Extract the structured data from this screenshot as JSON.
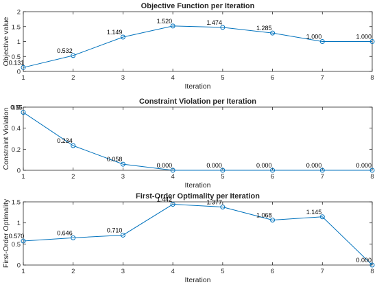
{
  "chart_data": [
    {
      "type": "line",
      "title": "Objective Function per Iteration",
      "xlabel": "Iteration",
      "ylabel": "Objective value",
      "x": [
        1,
        2,
        3,
        4,
        5,
        6,
        7,
        8
      ],
      "xlim": [
        1,
        8
      ],
      "ylim": [
        0,
        2
      ],
      "x_ticks": [
        1,
        2,
        3,
        4,
        5,
        6,
        7,
        8
      ],
      "y_ticks": [
        0,
        0.5,
        1,
        1.5,
        2
      ],
      "y_tick_labels": [
        "0",
        "0.5",
        "1",
        "1.5",
        "2"
      ],
      "series": [
        {
          "values": [
            0.131,
            0.532,
            1.149,
            1.52,
            1.474,
            1.285,
            1.0,
            1.0
          ],
          "labels": [
            "0.131",
            "0.532",
            "1.149",
            "1.520",
            "1.474",
            "1.285",
            "1.000",
            "1.000"
          ],
          "color": "#0072BD",
          "marker": "circle"
        }
      ],
      "grid": false
    },
    {
      "type": "line",
      "title": "Constraint Violation per Iteration",
      "xlabel": "Iteration",
      "ylabel": "Constraint Violation",
      "x": [
        1,
        2,
        3,
        4,
        5,
        6,
        7,
        8
      ],
      "xlim": [
        1,
        8
      ],
      "ylim": [
        0,
        0.6
      ],
      "x_ticks": [
        1,
        2,
        3,
        4,
        5,
        6,
        7,
        8
      ],
      "y_ticks": [
        0,
        0.2,
        0.4,
        0.6
      ],
      "y_tick_labels": [
        "0",
        "0.2",
        "0.4",
        "0.6"
      ],
      "series": [
        {
          "values": [
            0.55,
            0.234,
            0.058,
            0.0,
            0.0,
            0.0,
            0.0,
            0.0
          ],
          "labels": [
            "0.55",
            "0.234",
            "0.058",
            "0.000",
            "0.000",
            "0.000",
            "0.000",
            "0.000"
          ],
          "color": "#0072BD",
          "marker": "circle"
        }
      ],
      "grid": false
    },
    {
      "type": "line",
      "title": "First-Order Optimality per Iteration",
      "xlabel": "Iteration",
      "ylabel": "First-Order Optimality",
      "x": [
        1,
        2,
        3,
        4,
        5,
        6,
        7,
        8
      ],
      "xlim": [
        1,
        8
      ],
      "ylim": [
        0,
        1.5
      ],
      "x_ticks": [
        1,
        2,
        3,
        4,
        5,
        6,
        7,
        8
      ],
      "y_ticks": [
        0,
        0.5,
        1,
        1.5
      ],
      "y_tick_labels": [
        "0",
        "0.5",
        "1",
        "1.5"
      ],
      "series": [
        {
          "values": [
            0.57,
            0.646,
            0.71,
            1.442,
            1.377,
            1.068,
            1.145,
            0.0
          ],
          "labels": [
            "0.570",
            "0.646",
            "0.710",
            "1.442",
            "1.377",
            "1.068",
            "1.145",
            "0.000"
          ],
          "color": "#0072BD",
          "marker": "circle"
        }
      ],
      "grid": false
    }
  ]
}
